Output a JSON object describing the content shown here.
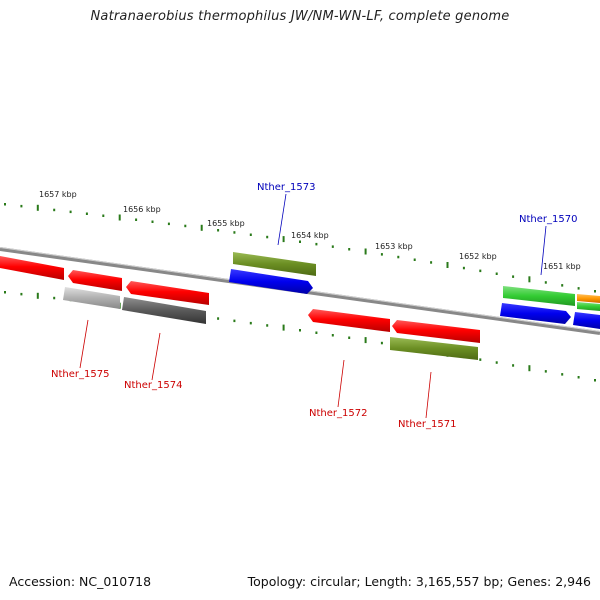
{
  "title": "Natranaerobius thermophilus JW/NM-WN-LF, complete genome",
  "footer": {
    "accession": "Accession: NC_010718",
    "topology": "Topology: circular; Length: 3,165,557 bp; Genes: 2,946"
  },
  "scale": {
    "tick_labels": [
      "1657 kbp",
      "1656 kbp",
      "1655 kbp",
      "1654 kbp",
      "1653 kbp",
      "1652 kbp",
      "1651 kbp"
    ]
  },
  "genes": {
    "forward": [
      "Nther_1573",
      "Nther_1570"
    ],
    "reverse": [
      "Nther_1575",
      "Nther_1574",
      "Nther_1572",
      "Nther_1571"
    ]
  },
  "colors": {
    "forward_label": "#0000bb",
    "reverse_label": "#cc0000",
    "tick": "#2a7a1a",
    "backbone": "#888888",
    "cds_red": "#ff0000",
    "cds_blue": "#0000ee",
    "cds_olive": "#6b8e23",
    "cds_green": "#33cc33",
    "cds_orange": "#ff9900",
    "cds_grey": "#aaaaaa",
    "cds_darkgrey": "#555555"
  }
}
